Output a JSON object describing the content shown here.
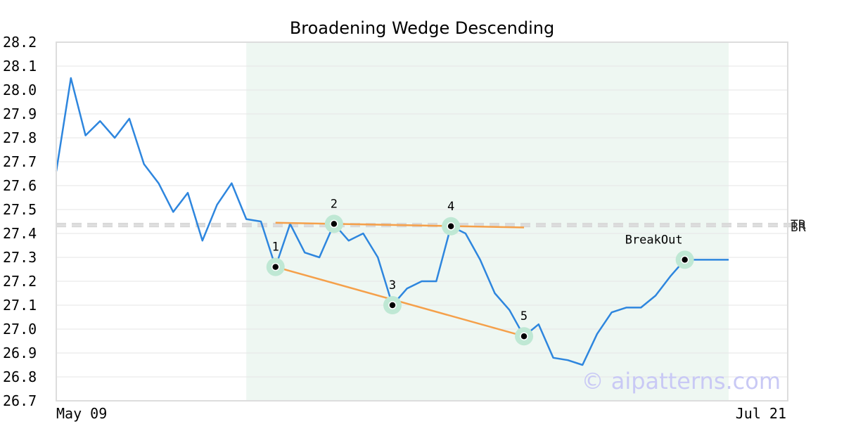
{
  "chart_data": {
    "type": "line",
    "title": "Broadening Wedge Descending",
    "xlabel": "",
    "ylabel": "",
    "x_tick_labels": [
      "May 09",
      "Jul 21"
    ],
    "y_ticks": [
      26.7,
      26.8,
      26.9,
      27.0,
      27.1,
      27.2,
      27.3,
      27.4,
      27.5,
      27.6,
      27.7,
      27.8,
      27.9,
      28.0,
      28.1,
      28.2
    ],
    "ylim": [
      26.7,
      28.2
    ],
    "grid": true,
    "series": [
      {
        "color": "#2e86de",
        "values": [
          27.66,
          28.05,
          27.81,
          27.87,
          27.8,
          27.88,
          27.69,
          27.61,
          27.49,
          27.57,
          27.37,
          27.52,
          27.61,
          27.46,
          27.45,
          27.26,
          27.44,
          27.32,
          27.3,
          27.44,
          27.37,
          27.4,
          27.3,
          27.1,
          27.17,
          27.2,
          27.2,
          27.43,
          27.4,
          27.29,
          27.15,
          27.08,
          26.97,
          27.02,
          26.88,
          26.87,
          26.85,
          26.98,
          27.07,
          27.09,
          27.09,
          27.14,
          27.22,
          27.29,
          27.29,
          27.29,
          27.29
        ]
      }
    ],
    "pattern_region": {
      "start_index": 13,
      "end_index": 46,
      "color": "#eef7f2"
    },
    "pivots": [
      {
        "label": "1",
        "index": 15,
        "value": 27.26
      },
      {
        "label": "2",
        "index": 19,
        "value": 27.44
      },
      {
        "label": "3",
        "index": 23,
        "value": 27.1
      },
      {
        "label": "4",
        "index": 27,
        "value": 27.43
      },
      {
        "label": "5",
        "index": 32,
        "value": 26.97
      },
      {
        "label": "BreakOut",
        "index": 43,
        "value": 27.29
      }
    ],
    "trendlines": [
      {
        "color": "#f5a04a",
        "start_index": 15,
        "start_value": 27.445,
        "end_index": 32,
        "end_value": 27.425
      },
      {
        "color": "#f5a04a",
        "start_index": 15,
        "start_value": 27.26,
        "end_index": 32,
        "end_value": 26.97
      }
    ],
    "reference_lines": [
      {
        "label": "TR",
        "value": 27.44
      },
      {
        "label": "BR",
        "value": 27.43
      }
    ],
    "watermark": "© aipatterns.com"
  }
}
